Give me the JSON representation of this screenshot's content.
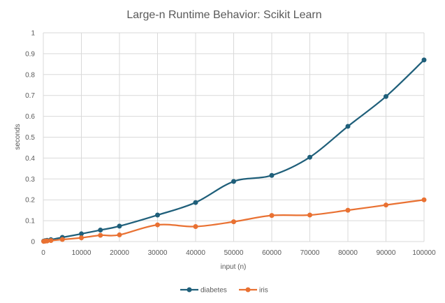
{
  "chart_data": {
    "type": "line",
    "title": "Large-n Runtime Behavior: Scikit Learn",
    "xlabel": "input (n)",
    "ylabel": "seconds",
    "xlim": [
      0,
      100000
    ],
    "ylim": [
      0,
      1
    ],
    "x_ticks": [
      0,
      10000,
      20000,
      30000,
      40000,
      50000,
      60000,
      70000,
      80000,
      90000,
      100000
    ],
    "y_ticks": [
      0,
      0.1,
      0.2,
      0.3,
      0.4,
      0.5,
      0.6,
      0.7,
      0.8,
      0.9,
      1
    ],
    "x_tick_labels": [
      "0",
      "10000",
      "20000",
      "30000",
      "40000",
      "50000",
      "60000",
      "70000",
      "80000",
      "90000",
      "100000"
    ],
    "y_tick_labels": [
      "0",
      "0.1",
      "0.2",
      "0.3",
      "0.4",
      "0.5",
      "0.6",
      "0.7",
      "0.8",
      "0.9",
      "1"
    ],
    "grid": true,
    "legend_position": "bottom",
    "series": [
      {
        "name": "diabetes",
        "color": "#1f5f7a",
        "points": [
          [
            100,
            0.002
          ],
          [
            500,
            0.004
          ],
          [
            1000,
            0.006
          ],
          [
            2000,
            0.009
          ],
          [
            5000,
            0.02
          ],
          [
            10000,
            0.037
          ],
          [
            15000,
            0.055
          ],
          [
            20000,
            0.074
          ],
          [
            30000,
            0.127
          ],
          [
            40000,
            0.187
          ],
          [
            50000,
            0.288
          ],
          [
            60000,
            0.317
          ],
          [
            70000,
            0.404
          ],
          [
            80000,
            0.552
          ],
          [
            90000,
            0.695
          ],
          [
            100000,
            0.87
          ]
        ]
      },
      {
        "name": "iris",
        "color": "#e97132",
        "points": [
          [
            100,
            0.001
          ],
          [
            500,
            0.002
          ],
          [
            1000,
            0.003
          ],
          [
            2000,
            0.005
          ],
          [
            5000,
            0.01
          ],
          [
            10000,
            0.018
          ],
          [
            15000,
            0.03
          ],
          [
            20000,
            0.032
          ],
          [
            30000,
            0.08
          ],
          [
            40000,
            0.072
          ],
          [
            50000,
            0.095
          ],
          [
            60000,
            0.125
          ],
          [
            70000,
            0.127
          ],
          [
            80000,
            0.15
          ],
          [
            90000,
            0.175
          ],
          [
            100000,
            0.2
          ]
        ]
      }
    ]
  }
}
